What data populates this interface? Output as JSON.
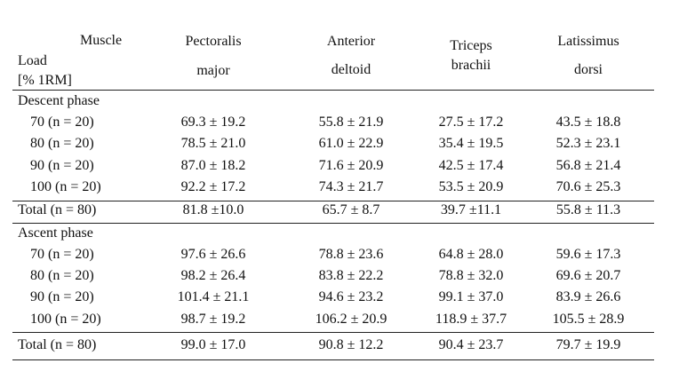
{
  "header": {
    "muscle": "Muscle",
    "load": [
      "Load",
      "[% 1RM]"
    ],
    "columns": [
      [
        "Pectoralis",
        "major"
      ],
      [
        "Anterior",
        "deltoid"
      ],
      [
        "Triceps",
        "brachii"
      ],
      [
        "Latissimus",
        "dorsi"
      ]
    ]
  },
  "sections": [
    {
      "title": "Descent phase",
      "rows": [
        {
          "label": "70 (n = 20)",
          "values": [
            "69.3 ± 19.2",
            "55.8 ± 21.9",
            "27.5 ± 17.2",
            "43.5 ± 18.8"
          ]
        },
        {
          "label": "80 (n = 20)",
          "values": [
            "78.5 ± 21.0",
            "61.0 ± 22.9",
            "35.4 ± 19.5",
            "52.3 ± 23.1"
          ]
        },
        {
          "label": "90 (n = 20)",
          "values": [
            "87.0 ± 18.2",
            "71.6 ± 20.9",
            "42.5 ± 17.4",
            "56.8 ± 21.4"
          ]
        },
        {
          "label": "100 (n = 20)",
          "values": [
            "92.2 ± 17.2",
            "74.3 ± 21.7",
            "53.5 ± 20.9",
            "70.6 ± 25.3"
          ]
        }
      ],
      "total": {
        "label": "Total (n = 80)",
        "values": [
          "81.8 ±10.0",
          "65.7 ± 8.7",
          "39.7 ±11.1",
          "55.8 ± 11.3"
        ]
      }
    },
    {
      "title": "Ascent phase",
      "rows": [
        {
          "label": "70 (n = 20)",
          "values": [
            "97.6 ± 26.6",
            "78.8 ± 23.6",
            "64.8 ± 28.0",
            "59.6 ± 17.3"
          ]
        },
        {
          "label": "80 (n = 20)",
          "values": [
            "98.2 ± 26.4",
            "83.8 ± 22.2",
            "78.8 ± 32.0",
            "69.6 ± 20.7"
          ]
        },
        {
          "label": "90 (n = 20)",
          "values": [
            "101.4 ± 21.1",
            "94.6 ± 23.2",
            "99.1 ± 37.0",
            "83.9 ± 26.6"
          ]
        },
        {
          "label": "100 (n = 20)",
          "values": [
            "98.7 ± 19.2",
            "106.2 ± 20.9",
            "118.9 ± 37.7",
            "105.5 ± 28.9"
          ]
        }
      ],
      "total": {
        "label": "Total (n = 80)",
        "values": [
          "99.0 ± 17.0",
          "90.8 ± 12.2",
          "90.4 ± 23.7",
          "79.7 ± 19.9"
        ]
      }
    }
  ]
}
